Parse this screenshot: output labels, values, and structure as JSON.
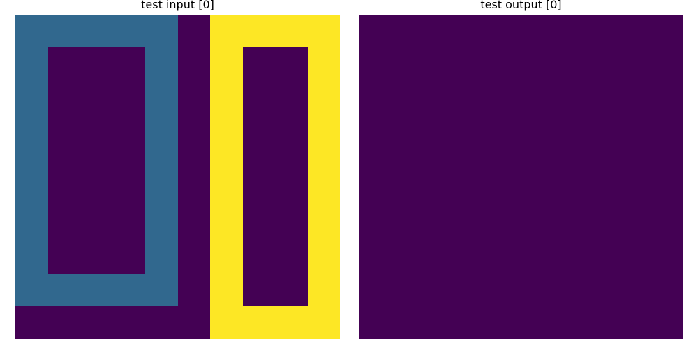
{
  "panels": [
    {
      "title": "test input [0]",
      "grid": [
        [
          1,
          1,
          1,
          1,
          1,
          0,
          2,
          2,
          2,
          2
        ],
        [
          1,
          0,
          0,
          0,
          1,
          0,
          2,
          0,
          0,
          2
        ],
        [
          1,
          0,
          0,
          0,
          1,
          0,
          2,
          0,
          0,
          2
        ],
        [
          1,
          0,
          0,
          0,
          1,
          0,
          2,
          0,
          0,
          2
        ],
        [
          1,
          0,
          0,
          0,
          1,
          0,
          2,
          0,
          0,
          2
        ],
        [
          1,
          0,
          0,
          0,
          1,
          0,
          2,
          0,
          0,
          2
        ],
        [
          1,
          0,
          0,
          0,
          1,
          0,
          2,
          0,
          0,
          2
        ],
        [
          1,
          0,
          0,
          0,
          1,
          0,
          2,
          0,
          0,
          2
        ],
        [
          1,
          1,
          1,
          1,
          1,
          0,
          2,
          0,
          0,
          2
        ],
        [
          0,
          0,
          0,
          0,
          0,
          0,
          2,
          2,
          2,
          2
        ]
      ]
    },
    {
      "title": "test output [0]",
      "grid": [
        [
          0,
          0,
          0,
          0,
          0,
          0,
          0,
          0,
          0,
          0
        ],
        [
          0,
          0,
          0,
          0,
          0,
          0,
          0,
          0,
          0,
          0
        ],
        [
          0,
          0,
          0,
          0,
          0,
          0,
          0,
          0,
          0,
          0
        ],
        [
          0,
          0,
          0,
          0,
          0,
          0,
          0,
          0,
          0,
          0
        ],
        [
          0,
          0,
          0,
          0,
          0,
          0,
          0,
          0,
          0,
          0
        ],
        [
          0,
          0,
          0,
          0,
          0,
          0,
          0,
          0,
          0,
          0
        ],
        [
          0,
          0,
          0,
          0,
          0,
          0,
          0,
          0,
          0,
          0
        ],
        [
          0,
          0,
          0,
          0,
          0,
          0,
          0,
          0,
          0,
          0
        ],
        [
          0,
          0,
          0,
          0,
          0,
          0,
          0,
          0,
          0,
          0
        ],
        [
          0,
          0,
          0,
          0,
          0,
          0,
          0,
          0,
          0,
          0
        ]
      ]
    }
  ],
  "palette": [
    "#440154",
    "#31688e",
    "#fde725"
  ]
}
